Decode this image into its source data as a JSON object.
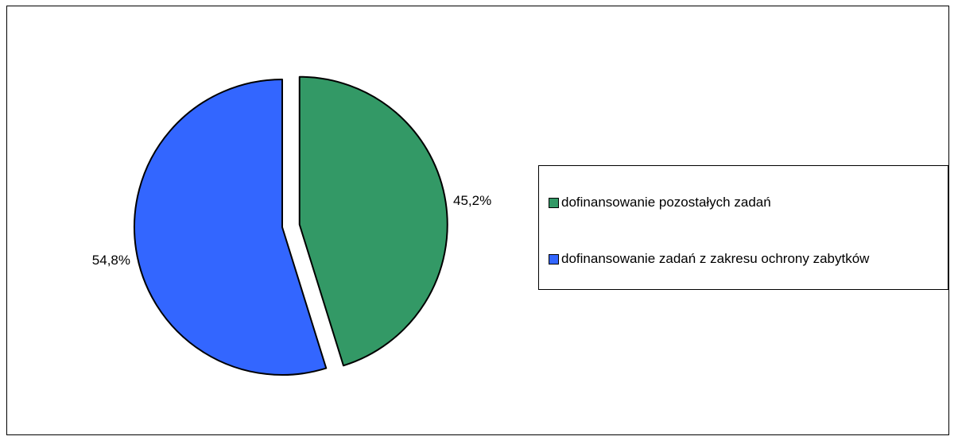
{
  "chart_data": {
    "type": "pie",
    "title": "",
    "slices": [
      {
        "label": "dofinansowanie pozostałych zadań",
        "value": 45.2,
        "display": "45,2%",
        "color": "#339966",
        "exploded": true
      },
      {
        "label": "dofinansowanie zadań z zakresu ochrony zabytków",
        "value": 54.8,
        "display": "54,8%",
        "color": "#3366FF",
        "exploded": false
      }
    ],
    "legend": {
      "placement": "right",
      "entries": [
        "dofinansowanie pozostałych zadań",
        "dofinansowanie zadań z zakresu ochrony zabytków"
      ]
    }
  }
}
